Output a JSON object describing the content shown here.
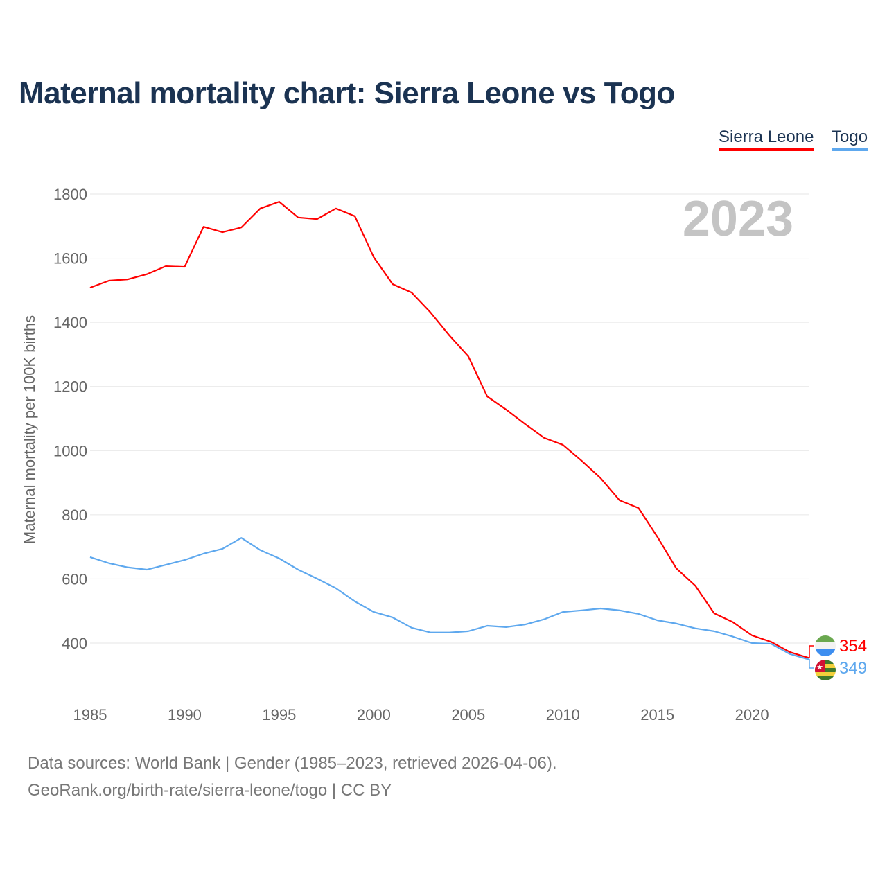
{
  "chart_data": {
    "type": "line",
    "title": "Maternal mortality chart: Sierra Leone vs Togo",
    "ylabel": "Maternal mortality per 100K births",
    "xlabel": "",
    "year_label": "2023",
    "xlim": [
      1985,
      2023
    ],
    "ylim": [
      300,
      1800
    ],
    "yticks": [
      400,
      600,
      800,
      1000,
      1200,
      1400,
      1600,
      1800
    ],
    "xticks": [
      1985,
      1990,
      1995,
      2000,
      2005,
      2010,
      2015,
      2020
    ],
    "grid": true,
    "legend_placement": "top-right",
    "x": [
      1985,
      1986,
      1987,
      1988,
      1989,
      1990,
      1991,
      1992,
      1993,
      1994,
      1995,
      1996,
      1997,
      1998,
      1999,
      2000,
      2001,
      2002,
      2003,
      2004,
      2005,
      2006,
      2007,
      2008,
      2009,
      2010,
      2011,
      2012,
      2013,
      2014,
      2015,
      2016,
      2017,
      2018,
      2019,
      2020,
      2021,
      2022,
      2023
    ],
    "series": [
      {
        "name": "Sierra Leone",
        "color": "#ff0000",
        "end_label": "354",
        "values": [
          1508,
          1530,
          1534,
          1550,
          1575,
          1573,
          1698,
          1681,
          1696,
          1755,
          1776,
          1727,
          1722,
          1755,
          1731,
          1603,
          1519,
          1493,
          1431,
          1359,
          1294,
          1169,
          1128,
          1083,
          1040,
          1018,
          968,
          914,
          845,
          821,
          731,
          633,
          579,
          493,
          465,
          424,
          404,
          372,
          354
        ]
      },
      {
        "name": "Togo",
        "color": "#5ea8ee",
        "end_label": "349",
        "values": [
          668,
          649,
          636,
          629,
          644,
          659,
          679,
          694,
          728,
          690,
          664,
          629,
          601,
          571,
          530,
          497,
          480,
          448,
          433,
          433,
          437,
          454,
          450,
          458,
          474,
          497,
          502,
          508,
          502,
          491,
          471,
          461,
          446,
          437,
          420,
          400,
          398,
          366,
          349
        ]
      }
    ]
  },
  "footer": {
    "line1": "Data sources: World Bank | Gender (1985–2023, retrieved 2026-04-06).",
    "line2": "GeoRank.org/birth-rate/sierra-leone/togo | CC BY"
  }
}
